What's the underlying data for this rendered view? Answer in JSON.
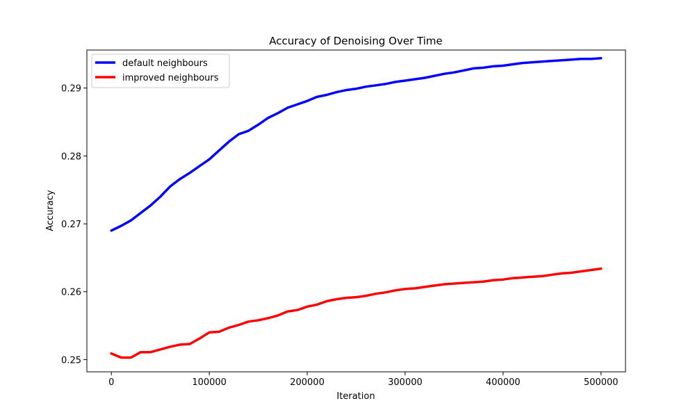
{
  "chart_data": {
    "type": "line",
    "title": "Accuracy of Denoising Over Time",
    "xlabel": "Iteration",
    "ylabel": "Accuracy",
    "xlim": [
      -25000,
      525000
    ],
    "ylim": [
      0.2482,
      0.2956
    ],
    "x_ticks": [
      0,
      100000,
      200000,
      300000,
      400000,
      500000
    ],
    "x_tick_labels": [
      "0",
      "100000",
      "200000",
      "300000",
      "400000",
      "500000"
    ],
    "y_ticks": [
      0.25,
      0.26,
      0.27,
      0.28,
      0.29
    ],
    "y_tick_labels": [
      "0.25",
      "0.26",
      "0.27",
      "0.28",
      "0.29"
    ],
    "grid": false,
    "legend_position": "top-left",
    "series": [
      {
        "name": "default neighbours",
        "color": "#0000ff",
        "x": [
          0,
          10000,
          20000,
          30000,
          40000,
          50000,
          60000,
          70000,
          80000,
          90000,
          100000,
          110000,
          120000,
          130000,
          140000,
          150000,
          160000,
          170000,
          180000,
          190000,
          200000,
          210000,
          220000,
          230000,
          240000,
          250000,
          260000,
          270000,
          280000,
          290000,
          300000,
          310000,
          320000,
          330000,
          340000,
          350000,
          360000,
          370000,
          380000,
          390000,
          400000,
          410000,
          420000,
          430000,
          440000,
          450000,
          460000,
          470000,
          480000,
          490000,
          500000
        ],
        "values": [
          0.269,
          0.2697,
          0.2705,
          0.2716,
          0.2727,
          0.274,
          0.2755,
          0.2766,
          0.2775,
          0.2785,
          0.2795,
          0.2808,
          0.2821,
          0.2832,
          0.2837,
          0.2846,
          0.2856,
          0.2863,
          0.2871,
          0.2876,
          0.2881,
          0.2887,
          0.289,
          0.2894,
          0.2897,
          0.2899,
          0.2902,
          0.2904,
          0.2906,
          0.2909,
          0.2911,
          0.2913,
          0.2915,
          0.2918,
          0.2921,
          0.2923,
          0.2926,
          0.2929,
          0.293,
          0.2932,
          0.2933,
          0.2935,
          0.2937,
          0.2938,
          0.2939,
          0.294,
          0.2941,
          0.2942,
          0.2943,
          0.2943,
          0.2944
        ]
      },
      {
        "name": "improved neighbours",
        "color": "#ff0000",
        "x": [
          0,
          10000,
          20000,
          30000,
          40000,
          50000,
          60000,
          70000,
          80000,
          90000,
          100000,
          110000,
          120000,
          130000,
          140000,
          150000,
          160000,
          170000,
          180000,
          190000,
          200000,
          210000,
          220000,
          230000,
          240000,
          250000,
          260000,
          270000,
          280000,
          290000,
          300000,
          310000,
          320000,
          330000,
          340000,
          350000,
          360000,
          370000,
          380000,
          390000,
          400000,
          410000,
          420000,
          430000,
          440000,
          450000,
          460000,
          470000,
          480000,
          490000,
          500000
        ],
        "values": [
          0.2509,
          0.2503,
          0.2503,
          0.2511,
          0.2511,
          0.2515,
          0.2519,
          0.2522,
          0.2523,
          0.2531,
          0.254,
          0.2541,
          0.2547,
          0.2551,
          0.2556,
          0.2558,
          0.2561,
          0.2565,
          0.2571,
          0.2573,
          0.2578,
          0.2581,
          0.2586,
          0.2589,
          0.2591,
          0.2592,
          0.2594,
          0.2597,
          0.2599,
          0.2602,
          0.2604,
          0.2605,
          0.2607,
          0.2609,
          0.2611,
          0.2612,
          0.2613,
          0.2614,
          0.2615,
          0.2617,
          0.2618,
          0.262,
          0.2621,
          0.2622,
          0.2623,
          0.2625,
          0.2627,
          0.2628,
          0.263,
          0.2632,
          0.2634
        ]
      }
    ]
  }
}
